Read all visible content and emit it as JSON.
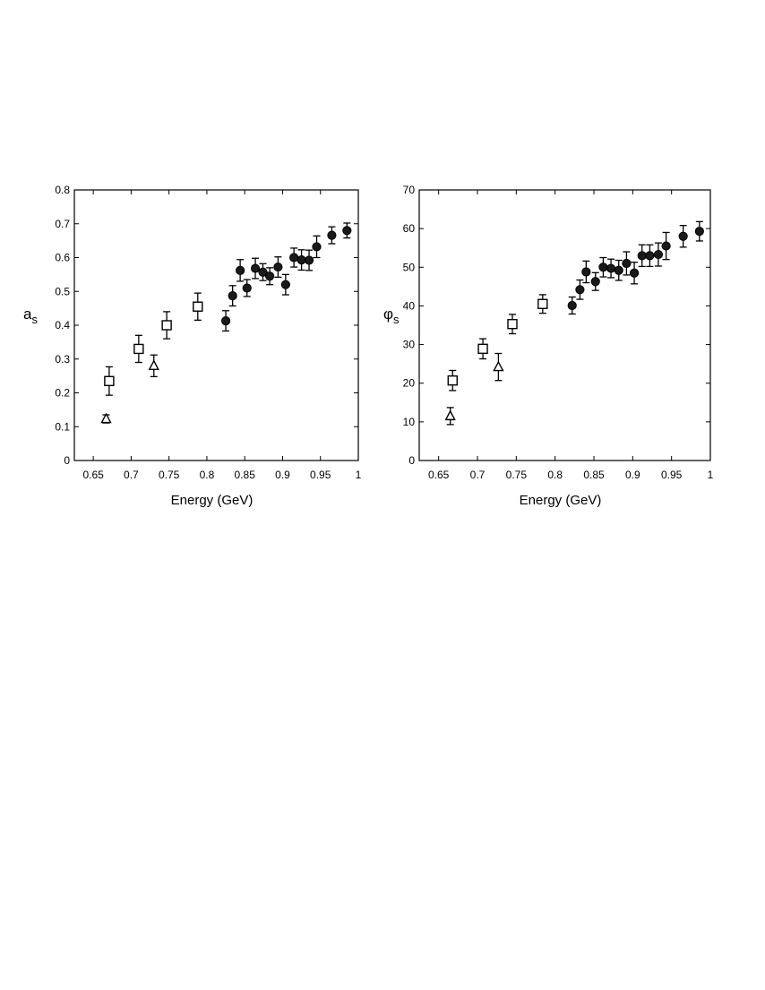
{
  "chart_data": [
    {
      "type": "scatter",
      "title": "",
      "xlabel": "Energy (GeV)",
      "ylabel_main": "a",
      "ylabel_sub": "s",
      "xlim": [
        0.625,
        1.0
      ],
      "ylim": [
        0,
        0.8
      ],
      "xticks": [
        0.65,
        0.7,
        0.75,
        0.8,
        0.85,
        0.9,
        0.95,
        1
      ],
      "xtick_labels": [
        "0.65",
        "0.7",
        "0.75",
        "0.8",
        "0.85",
        "0.9",
        "0.95",
        "1"
      ],
      "yticks": [
        0,
        0.1,
        0.2,
        0.3,
        0.4,
        0.5,
        0.6,
        0.7,
        0.8
      ],
      "ytick_labels": [
        "0",
        "0.1",
        "0.2",
        "0.3",
        "0.4",
        "0.5",
        "0.6",
        "0.7",
        "0.8"
      ],
      "grid": false,
      "series": [
        {
          "marker": "open-triangle",
          "points": [
            {
              "x": 0.667,
              "y": 0.123,
              "err": 0.012
            },
            {
              "x": 0.73,
              "y": 0.28,
              "err": 0.032
            }
          ]
        },
        {
          "marker": "open-square",
          "points": [
            {
              "x": 0.671,
              "y": 0.235,
              "err": 0.042
            },
            {
              "x": 0.71,
              "y": 0.33,
              "err": 0.04
            },
            {
              "x": 0.747,
              "y": 0.4,
              "err": 0.04
            },
            {
              "x": 0.788,
              "y": 0.455,
              "err": 0.04
            }
          ]
        },
        {
          "marker": "filled-circle",
          "points": [
            {
              "x": 0.825,
              "y": 0.413,
              "err": 0.03
            },
            {
              "x": 0.834,
              "y": 0.487,
              "err": 0.03
            },
            {
              "x": 0.844,
              "y": 0.562,
              "err": 0.032
            },
            {
              "x": 0.853,
              "y": 0.51,
              "err": 0.025
            },
            {
              "x": 0.864,
              "y": 0.568,
              "err": 0.03
            },
            {
              "x": 0.874,
              "y": 0.557,
              "err": 0.025
            },
            {
              "x": 0.883,
              "y": 0.545,
              "err": 0.025
            },
            {
              "x": 0.894,
              "y": 0.572,
              "err": 0.03
            },
            {
              "x": 0.904,
              "y": 0.52,
              "err": 0.03
            },
            {
              "x": 0.915,
              "y": 0.6,
              "err": 0.028
            },
            {
              "x": 0.925,
              "y": 0.593,
              "err": 0.03
            },
            {
              "x": 0.935,
              "y": 0.592,
              "err": 0.03
            },
            {
              "x": 0.945,
              "y": 0.632,
              "err": 0.032
            },
            {
              "x": 0.965,
              "y": 0.666,
              "err": 0.025
            },
            {
              "x": 0.985,
              "y": 0.68,
              "err": 0.022
            }
          ]
        }
      ]
    },
    {
      "type": "scatter",
      "title": "",
      "xlabel": "Energy (GeV)",
      "ylabel_main": "φ",
      "ylabel_sub": "s",
      "xlim": [
        0.625,
        1.0
      ],
      "ylim": [
        0,
        70
      ],
      "xticks": [
        0.65,
        0.7,
        0.75,
        0.8,
        0.85,
        0.9,
        0.95,
        1
      ],
      "xtick_labels": [
        "0.65",
        "0.7",
        "0.75",
        "0.8",
        "0.85",
        "0.9",
        "0.95",
        "1"
      ],
      "yticks": [
        0,
        10,
        20,
        30,
        40,
        50,
        60,
        70
      ],
      "ytick_labels": [
        "0",
        "10",
        "20",
        "30",
        "40",
        "50",
        "60",
        "70"
      ],
      "grid": false,
      "series": [
        {
          "marker": "open-triangle",
          "points": [
            {
              "x": 0.665,
              "y": 11.5,
              "err": 2.2
            },
            {
              "x": 0.727,
              "y": 24.2,
              "err": 3.5
            }
          ]
        },
        {
          "marker": "open-square",
          "points": [
            {
              "x": 0.668,
              "y": 20.7,
              "err": 2.6
            },
            {
              "x": 0.707,
              "y": 28.9,
              "err": 2.6
            },
            {
              "x": 0.745,
              "y": 35.3,
              "err": 2.5
            },
            {
              "x": 0.784,
              "y": 40.5,
              "err": 2.4
            }
          ]
        },
        {
          "marker": "filled-circle",
          "points": [
            {
              "x": 0.822,
              "y": 40.1,
              "err": 2.2
            },
            {
              "x": 0.832,
              "y": 44.2,
              "err": 2.5
            },
            {
              "x": 0.84,
              "y": 48.8,
              "err": 2.8
            },
            {
              "x": 0.852,
              "y": 46.3,
              "err": 2.3
            },
            {
              "x": 0.862,
              "y": 50.0,
              "err": 2.5
            },
            {
              "x": 0.872,
              "y": 49.7,
              "err": 2.4
            },
            {
              "x": 0.882,
              "y": 49.2,
              "err": 2.6
            },
            {
              "x": 0.892,
              "y": 51.0,
              "err": 3.0
            },
            {
              "x": 0.902,
              "y": 48.5,
              "err": 2.8
            },
            {
              "x": 0.912,
              "y": 53.0,
              "err": 2.8
            },
            {
              "x": 0.922,
              "y": 53.0,
              "err": 2.8
            },
            {
              "x": 0.933,
              "y": 53.3,
              "err": 3.0
            },
            {
              "x": 0.943,
              "y": 55.5,
              "err": 3.5
            },
            {
              "x": 0.965,
              "y": 58.0,
              "err": 2.8
            },
            {
              "x": 0.986,
              "y": 59.3,
              "err": 2.5
            }
          ]
        }
      ]
    }
  ]
}
